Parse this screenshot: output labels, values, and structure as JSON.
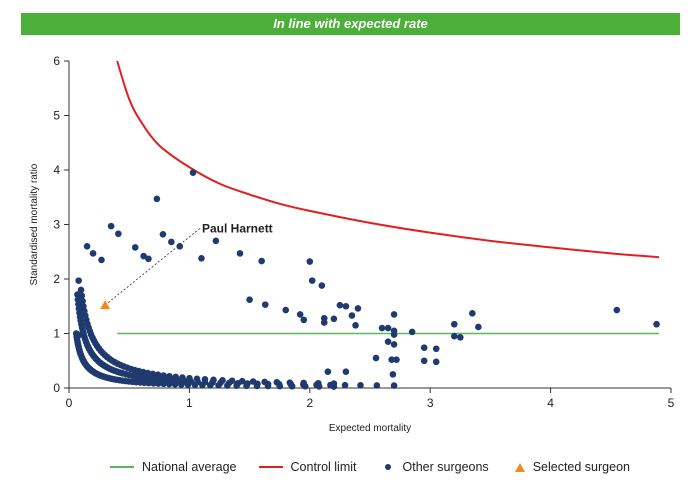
{
  "banner": {
    "title": "In line with expected rate"
  },
  "colors": {
    "banner": "#4caf3a",
    "national_average": "#5cb85c",
    "control_limit": "#e02020",
    "other_surgeons": "#1f3a6e",
    "selected_surgeon": "#f08a1c"
  },
  "chart_data": {
    "type": "scatter",
    "title": "In line with expected rate",
    "xlabel": "Expected mortality",
    "ylabel": "Standardised mortality ratio",
    "xlim": [
      0,
      5
    ],
    "ylim": [
      0,
      6
    ],
    "xticks": [
      0,
      1,
      2,
      3,
      4,
      5
    ],
    "yticks": [
      0,
      1,
      2,
      3,
      4,
      5,
      6
    ],
    "grid": false,
    "legend_position": "bottom",
    "legend": [
      "National average",
      "Control limit",
      "Other surgeons",
      "Selected surgeon"
    ],
    "national_average": {
      "name": "National average",
      "y": 1,
      "x_range": [
        0.4,
        4.9
      ]
    },
    "control_limit": {
      "name": "Control limit",
      "points": [
        [
          0.4,
          6.0
        ],
        [
          0.5,
          5.3
        ],
        [
          0.6,
          4.88
        ],
        [
          0.75,
          4.45
        ],
        [
          1.0,
          4.05
        ],
        [
          1.25,
          3.75
        ],
        [
          1.5,
          3.55
        ],
        [
          1.75,
          3.38
        ],
        [
          2.0,
          3.25
        ],
        [
          2.5,
          3.03
        ],
        [
          3.0,
          2.85
        ],
        [
          3.5,
          2.7
        ],
        [
          4.0,
          2.58
        ],
        [
          4.5,
          2.47
        ],
        [
          4.9,
          2.4
        ]
      ]
    },
    "other_surgeons": {
      "name": "Other surgeons",
      "curves": [
        {
          "k": 0.06,
          "x_range": [
            0.06,
            2.2
          ],
          "n": 64
        },
        {
          "k": 0.12,
          "x_range": [
            0.07,
            2.7
          ],
          "n": 68
        },
        {
          "k": 0.18,
          "x_range": [
            0.1,
            2.2
          ],
          "n": 52
        }
      ],
      "points": [
        [
          0.15,
          2.6
        ],
        [
          0.2,
          2.47
        ],
        [
          0.27,
          2.35
        ],
        [
          0.35,
          2.97
        ],
        [
          0.41,
          2.83
        ],
        [
          0.55,
          2.58
        ],
        [
          0.62,
          2.42
        ],
        [
          0.66,
          2.37
        ],
        [
          0.73,
          3.47
        ],
        [
          0.78,
          2.82
        ],
        [
          0.85,
          2.68
        ],
        [
          0.92,
          2.6
        ],
        [
          1.03,
          3.95
        ],
        [
          1.1,
          2.38
        ],
        [
          1.22,
          2.7
        ],
        [
          1.42,
          2.47
        ],
        [
          1.6,
          2.33
        ],
        [
          2.0,
          2.32
        ],
        [
          2.02,
          1.97
        ],
        [
          2.1,
          1.88
        ],
        [
          1.5,
          1.62
        ],
        [
          1.63,
          1.53
        ],
        [
          1.8,
          1.43
        ],
        [
          1.92,
          1.35
        ],
        [
          1.95,
          1.25
        ],
        [
          2.25,
          1.52
        ],
        [
          2.3,
          1.5
        ],
        [
          2.4,
          1.46
        ],
        [
          2.35,
          1.33
        ],
        [
          2.2,
          1.27
        ],
        [
          2.12,
          1.28
        ],
        [
          2.12,
          1.2
        ],
        [
          2.38,
          1.15
        ],
        [
          2.6,
          1.1
        ],
        [
          2.65,
          1.1
        ],
        [
          2.7,
          1.35
        ],
        [
          2.7,
          1.05
        ],
        [
          2.85,
          1.03
        ],
        [
          2.7,
          0.98
        ],
        [
          2.65,
          0.85
        ],
        [
          2.7,
          0.8
        ],
        [
          2.95,
          0.74
        ],
        [
          3.05,
          0.72
        ],
        [
          2.95,
          0.5
        ],
        [
          3.05,
          0.48
        ],
        [
          2.68,
          0.52
        ],
        [
          2.72,
          0.52
        ],
        [
          2.69,
          0.25
        ],
        [
          3.2,
          1.17
        ],
        [
          3.35,
          1.37
        ],
        [
          3.4,
          1.12
        ],
        [
          3.2,
          0.95
        ],
        [
          3.25,
          0.93
        ],
        [
          4.55,
          1.43
        ],
        [
          4.88,
          1.17
        ],
        [
          0.08,
          0.97
        ],
        [
          0.08,
          1.97
        ],
        [
          2.15,
          0.3
        ],
        [
          2.3,
          0.3
        ],
        [
          2.55,
          0.55
        ]
      ]
    },
    "selected_surgeon": {
      "name": "Selected surgeon",
      "label": "Paul Harnett",
      "x": 0.3,
      "y": 1.52
    }
  }
}
